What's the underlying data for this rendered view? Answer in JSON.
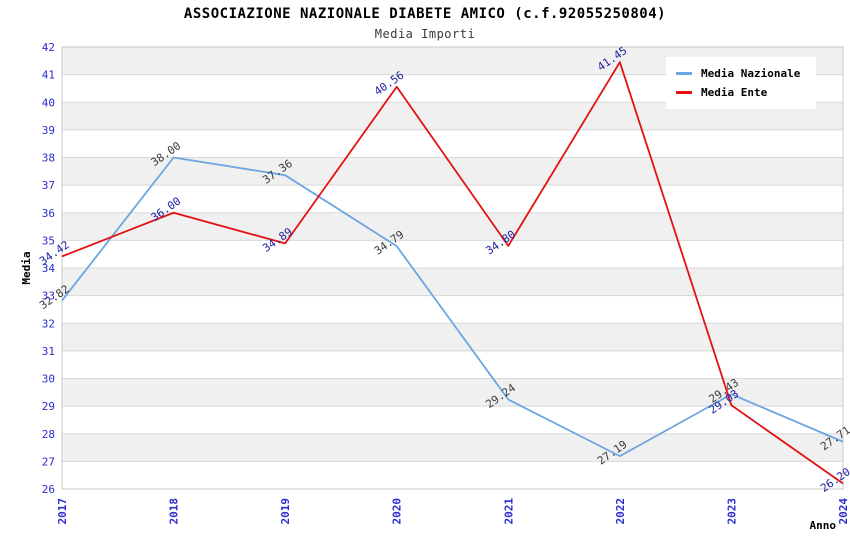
{
  "chart_data": {
    "type": "line",
    "title": "ASSOCIAZIONE NAZIONALE DIABETE AMICO (c.f.92055250804)",
    "subtitle": "Media Importi",
    "xlabel": "Anno",
    "ylabel": "Media",
    "categories": [
      "2017",
      "2018",
      "2019",
      "2020",
      "2021",
      "2022",
      "2023",
      "2024"
    ],
    "series": [
      {
        "name": "Media Nazionale",
        "color": "#6CA6E0",
        "label_color": "#3a3a3a",
        "values": [
          32.82,
          38.0,
          37.36,
          34.79,
          29.24,
          27.19,
          29.43,
          27.71
        ]
      },
      {
        "name": "Media Ente",
        "color": "#E31212",
        "label_color": "#2020a0",
        "values": [
          34.42,
          36.0,
          34.89,
          40.56,
          34.8,
          41.45,
          29.03,
          26.2
        ]
      }
    ],
    "ylim": [
      26,
      42
    ],
    "ytick_step": 1,
    "grid": "horizontal",
    "legend_position": "top-right",
    "style": {
      "band_fill": "#f0f0f0",
      "gridline_color": "#d8d8d8",
      "border_color": "#c8c8c8",
      "axis_tick_color": "#2b2bd0",
      "axis_label_color": "#000000"
    }
  }
}
